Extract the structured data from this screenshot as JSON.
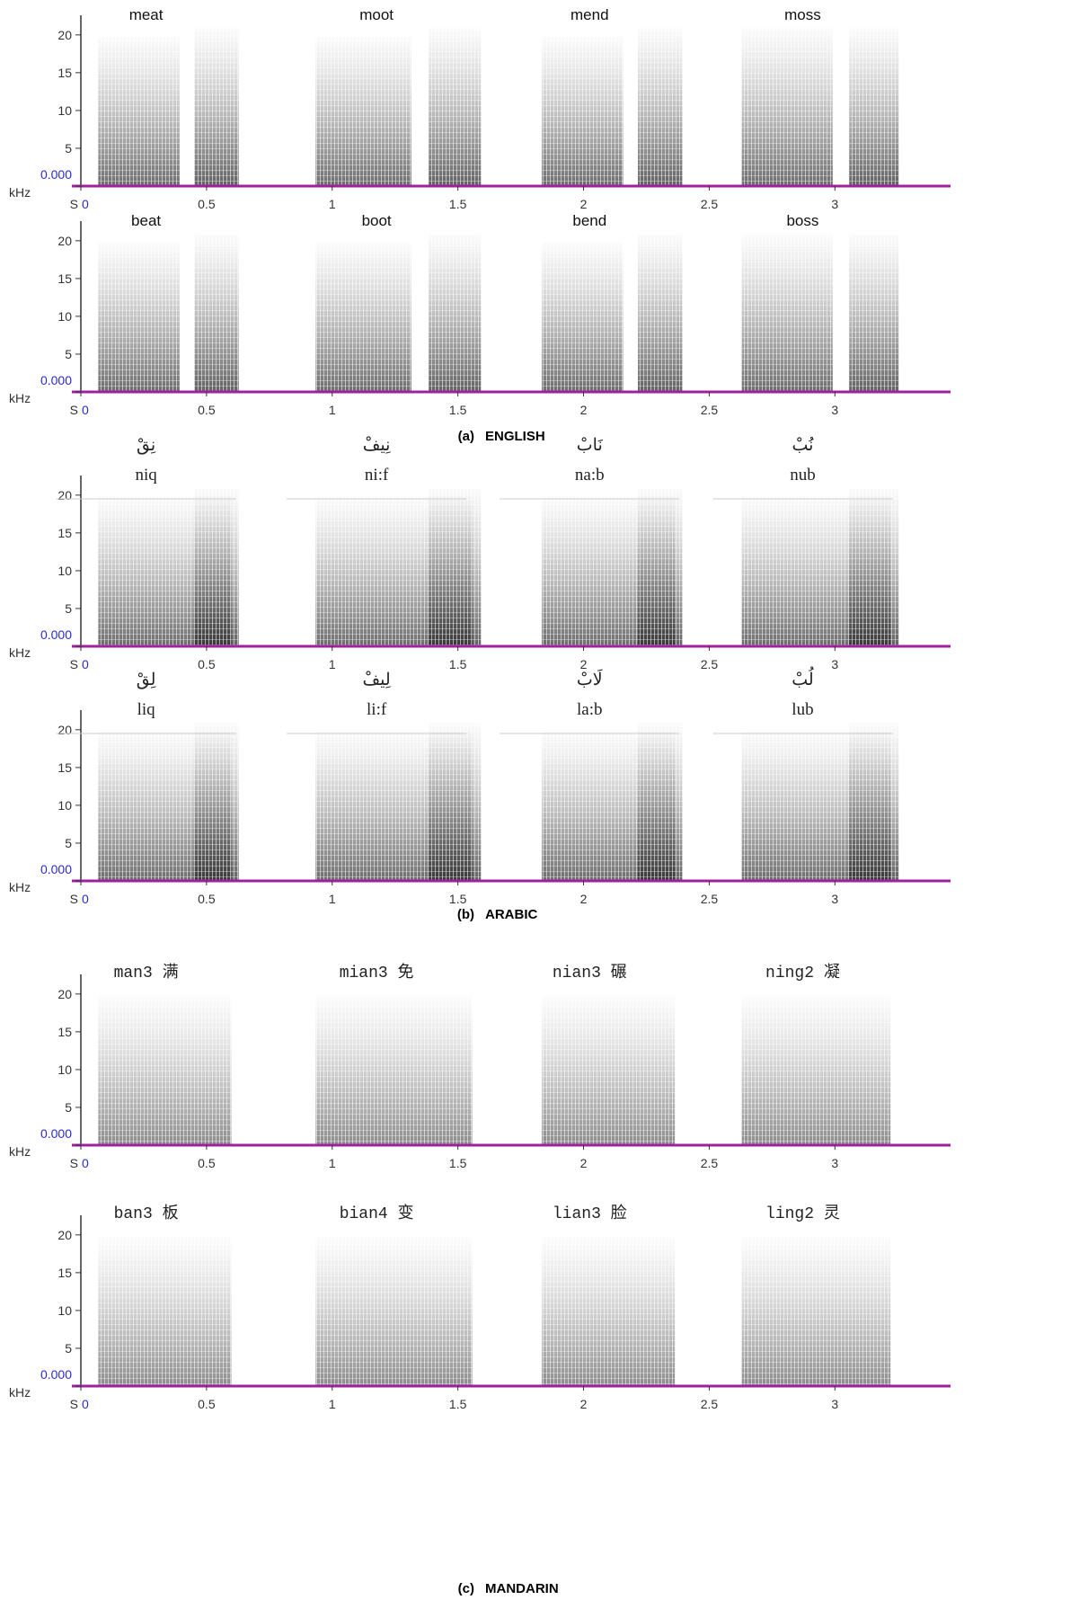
{
  "chart_data": [
    {
      "type": "spectrogram",
      "style": "english",
      "words": [
        "meat",
        "moot",
        "mend",
        "moss"
      ],
      "x_unit": "S",
      "y_unit": "kHz",
      "xlim": [
        0,
        3.46
      ],
      "ylim": [
        0,
        22
      ],
      "xticks": [
        0,
        0.5,
        1,
        1.5,
        2,
        2.5,
        3
      ],
      "yticks": [
        {
          "value": 0,
          "label": "0.000"
        },
        5,
        10,
        15,
        20
      ]
    },
    {
      "type": "spectrogram",
      "style": "english",
      "words": [
        "beat",
        "boot",
        "bend",
        "boss"
      ],
      "x_unit": "S",
      "y_unit": "kHz",
      "xlim": [
        0,
        3.46
      ],
      "ylim": [
        0,
        22
      ],
      "xticks": [
        0,
        0.5,
        1,
        1.5,
        2,
        2.5,
        3
      ],
      "yticks": [
        {
          "value": 0,
          "label": "0.000"
        },
        5,
        10,
        15,
        20
      ],
      "caption": [
        "(a)",
        "ENGLISH"
      ]
    },
    {
      "type": "spectrogram",
      "style": "arabic",
      "words": [
        "نِقْ",
        "نِيفْ",
        "نَابْ",
        "نُبْ"
      ],
      "transliterations": [
        "niq",
        "ni:f",
        "na:b",
        "nub"
      ],
      "x_unit": "S",
      "y_unit": "kHz",
      "xlim": [
        0,
        3.46
      ],
      "ylim": [
        0,
        22
      ],
      "xticks": [
        0,
        0.5,
        1,
        1.5,
        2,
        2.5,
        3
      ],
      "yticks": [
        {
          "value": 0,
          "label": "0.000"
        },
        5,
        10,
        15,
        20
      ]
    },
    {
      "type": "spectrogram",
      "style": "arabic",
      "words": [
        "لِقْ",
        "لِيفْ",
        "لَابْ",
        "لُبْ"
      ],
      "transliterations": [
        "liq",
        "li:f",
        "la:b",
        "lub"
      ],
      "x_unit": "S",
      "y_unit": "kHz",
      "xlim": [
        0,
        3.46
      ],
      "ylim": [
        0,
        22
      ],
      "xticks": [
        0,
        0.5,
        1,
        1.5,
        2,
        2.5,
        3
      ],
      "yticks": [
        {
          "value": 0,
          "label": "0.000"
        },
        5,
        10,
        15,
        20
      ],
      "caption": [
        "(b)",
        "ARABIC"
      ]
    },
    {
      "type": "spectrogram",
      "style": "mandarin",
      "words": [
        "man3 满",
        "mian3 免",
        "nian3 碾",
        "ning2 凝"
      ],
      "x_unit": "S",
      "y_unit": "kHz",
      "xlim": [
        0,
        3.46
      ],
      "ylim": [
        0,
        22
      ],
      "xticks": [
        0,
        0.5,
        1,
        1.5,
        2,
        2.5,
        3
      ],
      "yticks": [
        {
          "value": 0,
          "label": "0.000"
        },
        5,
        10,
        15,
        20
      ]
    },
    {
      "type": "spectrogram",
      "style": "mandarin",
      "words": [
        "ban3 板",
        "bian4 变",
        "lian3 脸",
        "ling2 灵"
      ],
      "x_unit": "S",
      "y_unit": "kHz",
      "xlim": [
        0,
        3.46
      ],
      "ylim": [
        0,
        22
      ],
      "xticks": [
        0,
        0.5,
        1,
        1.5,
        2,
        2.5,
        3
      ],
      "yticks": [
        {
          "value": 0,
          "label": "0.000"
        },
        5,
        10,
        15,
        20
      ],
      "caption": [
        "(c)",
        "MANDARIN"
      ]
    }
  ]
}
